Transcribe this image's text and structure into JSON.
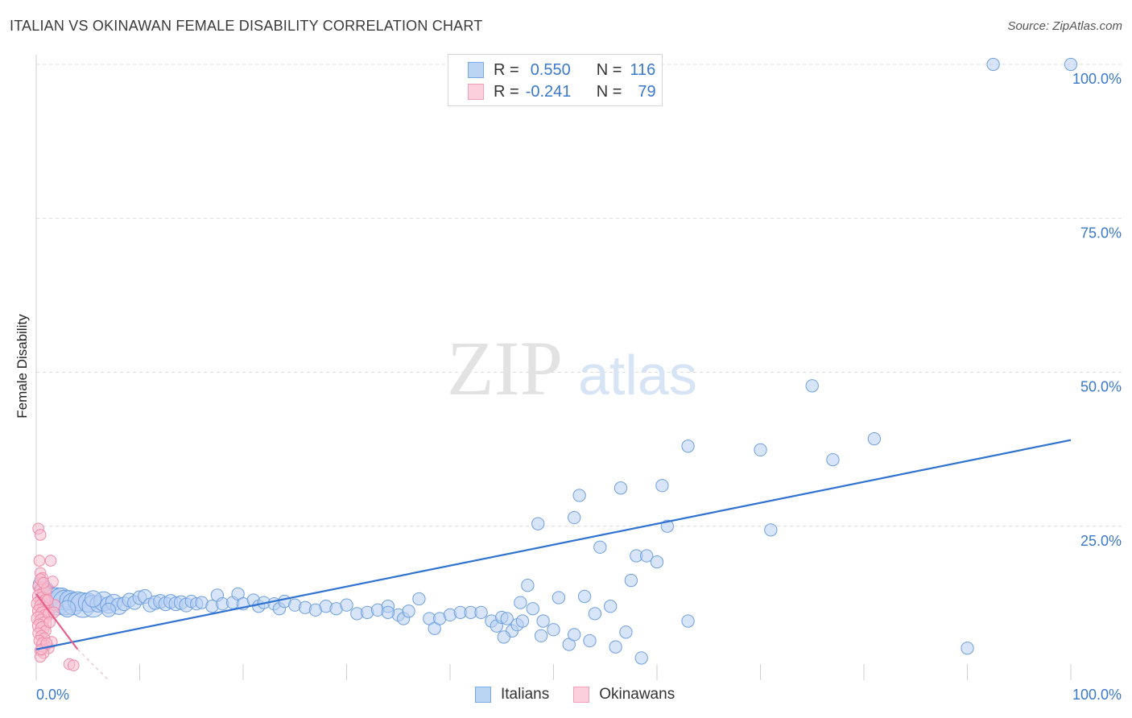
{
  "title": "ITALIAN VS OKINAWAN FEMALE DISABILITY CORRELATION CHART",
  "source": "Source: ZipAtlas.com",
  "colors": {
    "italians": "#7aaae8",
    "italians_line": "#2f72d0",
    "okinawans": "#f4a0b8",
    "okinawans_line": "#e8608a",
    "tick_text": "#3a78cc"
  },
  "legend_top": {
    "rows": [
      {
        "r_label": "R =",
        "r_value": "0.550",
        "n_label": "N =",
        "n_value": "116"
      },
      {
        "r_label": "R =",
        "r_value": "-0.241",
        "n_label": "N =",
        "n_value": "79"
      }
    ]
  },
  "legend_bottom": {
    "italians": "Italians",
    "okinawans": "Okinawans"
  },
  "watermark": {
    "zip": "ZIP",
    "atlas": "atlas"
  },
  "chart_data": {
    "type": "scatter",
    "xlabel": "",
    "ylabel": "Female Disability",
    "xlim": [
      0,
      100
    ],
    "ylim": [
      0,
      100
    ],
    "x_ticks": [
      "0.0%",
      "100.0%"
    ],
    "y_ticks": [
      {
        "value": 25,
        "label": "25.0%"
      },
      {
        "value": 50,
        "label": "50.0%"
      },
      {
        "value": 75,
        "label": "75.0%"
      },
      {
        "value": 100,
        "label": "100.0%"
      }
    ],
    "grid": "horizontal dashed",
    "legend_position": "top-center",
    "series": [
      {
        "name": "Italians",
        "r": 0.55,
        "n": 116,
        "trend": {
          "x": [
            0,
            100
          ],
          "y": [
            5.0,
            39.0
          ]
        },
        "points": [
          [
            0.5,
            15.5,
            12
          ],
          [
            0.8,
            14.5,
            14
          ],
          [
            1.2,
            13.5,
            16
          ],
          [
            1.6,
            13.0,
            18
          ],
          [
            2.0,
            12.8,
            20
          ],
          [
            2.4,
            13.2,
            16
          ],
          [
            2.8,
            12.6,
            18
          ],
          [
            3.2,
            13.0,
            14
          ],
          [
            3.6,
            12.4,
            16
          ],
          [
            4.0,
            12.8,
            14
          ],
          [
            4.5,
            12.2,
            18
          ],
          [
            5.0,
            12.6,
            14
          ],
          [
            5.5,
            12.0,
            16
          ],
          [
            6.0,
            12.4,
            12
          ],
          [
            6.5,
            12.8,
            14
          ],
          [
            7.0,
            12.2,
            12
          ],
          [
            7.5,
            12.6,
            12
          ],
          [
            8.0,
            12.0,
            12
          ],
          [
            8.5,
            12.4,
            10
          ],
          [
            9.0,
            13.0,
            10
          ],
          [
            9.5,
            12.6,
            10
          ],
          [
            10.0,
            13.4,
            10
          ],
          [
            10.5,
            13.6,
            10
          ],
          [
            11.0,
            12.2,
            10
          ],
          [
            11.5,
            12.6,
            10
          ],
          [
            12.0,
            12.8,
            10
          ],
          [
            12.5,
            12.4,
            10
          ],
          [
            13.0,
            12.8,
            10
          ],
          [
            13.5,
            12.4,
            10
          ],
          [
            14.0,
            12.6,
            10
          ],
          [
            14.5,
            12.2,
            10
          ],
          [
            15.0,
            12.8,
            9
          ],
          [
            15.5,
            12.4,
            9
          ],
          [
            16.0,
            12.6,
            9
          ],
          [
            17.0,
            12.0,
            9
          ],
          [
            17.5,
            13.8,
            9
          ],
          [
            18.0,
            12.4,
            9
          ],
          [
            19.0,
            12.6,
            9
          ],
          [
            19.5,
            14.0,
            9
          ],
          [
            20.0,
            12.4,
            9
          ],
          [
            21.0,
            13.0,
            9
          ],
          [
            21.5,
            12.0,
            9
          ],
          [
            22.0,
            12.6,
            9
          ],
          [
            23.0,
            12.4,
            9
          ],
          [
            23.5,
            11.6,
            9
          ],
          [
            24.0,
            12.8,
            9
          ],
          [
            25.0,
            12.2,
            9
          ],
          [
            26.0,
            11.8,
            9
          ],
          [
            27.0,
            11.4,
            9
          ],
          [
            28.0,
            12.0,
            9
          ],
          [
            29.0,
            11.6,
            9
          ],
          [
            30.0,
            12.2,
            9
          ],
          [
            31.0,
            10.8,
            9
          ],
          [
            32.0,
            11.0,
            9
          ],
          [
            33.0,
            11.4,
            9
          ],
          [
            34.0,
            12.0,
            9
          ],
          [
            35.0,
            10.6,
            9
          ],
          [
            35.5,
            10.0,
            9
          ],
          [
            36.0,
            11.2,
            9
          ],
          [
            37.0,
            13.2,
            9
          ],
          [
            38.0,
            10.0,
            9
          ],
          [
            38.5,
            8.4,
            9
          ],
          [
            39.0,
            10.0,
            9
          ],
          [
            40.0,
            10.6,
            9
          ],
          [
            41.0,
            11.0,
            9
          ],
          [
            42.0,
            11.0,
            9
          ],
          [
            43.0,
            11.0,
            9
          ],
          [
            44.0,
            9.6,
            9
          ],
          [
            44.5,
            8.8,
            9
          ],
          [
            45.0,
            10.2,
            9
          ],
          [
            45.5,
            10.0,
            9
          ],
          [
            46.0,
            8.0,
            9
          ],
          [
            46.5,
            9.0,
            9
          ],
          [
            47.0,
            9.6,
            9
          ],
          [
            47.5,
            15.4,
            9
          ],
          [
            48.0,
            11.6,
            9
          ],
          [
            48.5,
            25.4,
            9
          ],
          [
            49.0,
            9.6,
            9
          ],
          [
            50.0,
            8.2,
            9
          ],
          [
            50.5,
            13.4,
            9
          ],
          [
            51.5,
            5.8,
            9
          ],
          [
            52.0,
            26.4,
            9
          ],
          [
            52.5,
            30.0,
            9
          ],
          [
            53.0,
            13.6,
            9
          ],
          [
            54.0,
            10.8,
            9
          ],
          [
            54.5,
            21.6,
            9
          ],
          [
            55.5,
            12.0,
            9
          ],
          [
            56.0,
            5.4,
            9
          ],
          [
            56.5,
            31.2,
            9
          ],
          [
            57.0,
            7.8,
            9
          ],
          [
            57.5,
            16.2,
            9
          ],
          [
            58.0,
            20.2,
            9
          ],
          [
            59.0,
            20.2,
            9
          ],
          [
            58.5,
            3.6,
            9
          ],
          [
            60.0,
            19.2,
            9
          ],
          [
            60.5,
            31.6,
            9
          ],
          [
            61.0,
            25.0,
            9
          ],
          [
            63.0,
            38.0,
            9
          ],
          [
            63.0,
            9.6,
            9
          ],
          [
            70.0,
            37.4,
            9
          ],
          [
            71.0,
            24.4,
            9
          ],
          [
            75.0,
            47.8,
            9
          ],
          [
            77.0,
            35.8,
            9
          ],
          [
            81.0,
            39.2,
            9
          ],
          [
            90.0,
            5.2,
            9
          ],
          [
            92.5,
            100.0,
            9
          ],
          [
            100.0,
            100.0,
            9
          ],
          [
            45.2,
            7.0,
            9
          ],
          [
            52.0,
            7.4,
            9
          ],
          [
            53.5,
            6.4,
            9
          ],
          [
            48.8,
            7.2,
            9
          ],
          [
            46.8,
            12.6,
            9
          ],
          [
            34.0,
            11.0,
            9
          ],
          [
            3.0,
            11.6,
            12
          ],
          [
            5.5,
            13.2,
            12
          ],
          [
            7.0,
            11.4,
            10
          ]
        ]
      },
      {
        "name": "Okinawans",
        "r": -0.241,
        "n": 79,
        "trend": {
          "x": [
            0,
            4.0
          ],
          "y": [
            14.0,
            5.0
          ],
          "dashed_to": [
            7.0,
            0.0
          ]
        },
        "points": [
          [
            0.2,
            24.6,
            8
          ],
          [
            0.4,
            23.6,
            8
          ],
          [
            0.3,
            19.4,
            8
          ],
          [
            1.4,
            19.4,
            8
          ],
          [
            0.4,
            17.4,
            8
          ],
          [
            0.6,
            16.6,
            8
          ],
          [
            1.6,
            16.0,
            8
          ],
          [
            0.2,
            15.2,
            8
          ],
          [
            0.5,
            14.6,
            10
          ],
          [
            0.8,
            14.2,
            10
          ],
          [
            0.3,
            13.6,
            10
          ],
          [
            0.6,
            13.2,
            10
          ],
          [
            0.9,
            12.8,
            10
          ],
          [
            0.2,
            12.4,
            10
          ],
          [
            0.5,
            12.0,
            10
          ],
          [
            0.8,
            11.6,
            10
          ],
          [
            0.3,
            11.2,
            10
          ],
          [
            0.6,
            10.8,
            10
          ],
          [
            0.9,
            10.4,
            10
          ],
          [
            0.2,
            10.0,
            10
          ],
          [
            0.5,
            9.6,
            10
          ],
          [
            0.8,
            9.2,
            10
          ],
          [
            0.3,
            8.8,
            10
          ],
          [
            0.6,
            8.4,
            10
          ],
          [
            0.9,
            8.0,
            8
          ],
          [
            0.2,
            7.6,
            8
          ],
          [
            0.5,
            7.2,
            8
          ],
          [
            0.8,
            6.8,
            8
          ],
          [
            0.3,
            6.4,
            8
          ],
          [
            0.6,
            6.0,
            8
          ],
          [
            0.9,
            5.6,
            8
          ],
          [
            1.2,
            5.2,
            8
          ],
          [
            0.4,
            4.8,
            8
          ],
          [
            0.7,
            4.4,
            8
          ],
          [
            0.4,
            3.8,
            8
          ],
          [
            1.5,
            6.2,
            8
          ],
          [
            1.2,
            10.8,
            8
          ],
          [
            1.0,
            14.8,
            8
          ],
          [
            1.8,
            12.2,
            8
          ],
          [
            0.4,
            16.4,
            8
          ],
          [
            3.2,
            2.6,
            8
          ],
          [
            3.6,
            2.4,
            8
          ],
          [
            1.1,
            13.0,
            8
          ],
          [
            0.7,
            15.8,
            8
          ],
          [
            1.3,
            9.4,
            8
          ],
          [
            1.7,
            11.0,
            8
          ],
          [
            0.5,
            5.0,
            8
          ],
          [
            1.0,
            6.0,
            8
          ]
        ]
      }
    ]
  }
}
